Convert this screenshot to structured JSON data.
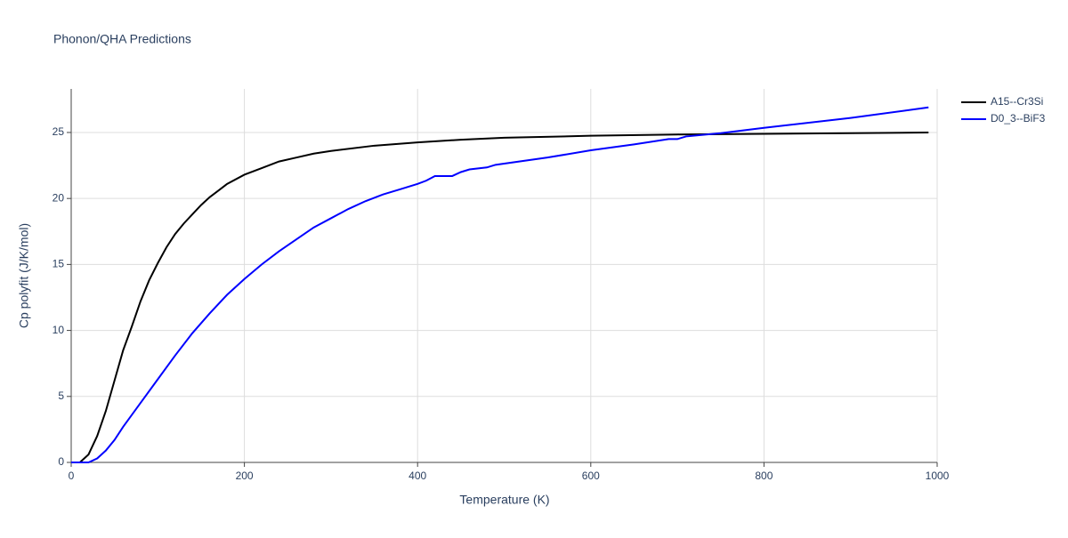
{
  "chart_data": {
    "type": "line",
    "title": "Phonon/QHA Predictions",
    "xlabel": "Temperature (K)",
    "ylabel": "Cp polyfit (J/K/mol)",
    "xlim": [
      0,
      1000
    ],
    "ylim": [
      0,
      28.3
    ],
    "xticks": [
      0,
      200,
      400,
      600,
      800,
      1000
    ],
    "yticks": [
      0,
      5,
      10,
      15,
      20,
      25
    ],
    "grid": true,
    "legend": "top-right",
    "series": [
      {
        "name": "A15--Cr3Si",
        "color": "#000000",
        "x": [
          0,
          10,
          20,
          30,
          40,
          50,
          60,
          70,
          80,
          90,
          100,
          110,
          120,
          130,
          140,
          150,
          160,
          170,
          180,
          200,
          220,
          240,
          260,
          280,
          300,
          350,
          400,
          450,
          500,
          600,
          700,
          800,
          900,
          990
        ],
        "values": [
          0,
          0,
          0.6,
          2,
          3.9,
          6.2,
          8.5,
          10.3,
          12.2,
          13.8,
          15.1,
          16.3,
          17.3,
          18.1,
          18.8,
          19.5,
          20.1,
          20.6,
          21.1,
          21.8,
          22.3,
          22.8,
          23.1,
          23.4,
          23.6,
          24.0,
          24.25,
          24.45,
          24.6,
          24.75,
          24.85,
          24.9,
          24.95,
          25.0
        ]
      },
      {
        "name": "D0_3--BiF3",
        "color": "#0000ff",
        "x": [
          0,
          20,
          30,
          40,
          50,
          60,
          70,
          80,
          100,
          120,
          140,
          160,
          180,
          200,
          220,
          240,
          260,
          280,
          300,
          320,
          340,
          360,
          380,
          400,
          410,
          420,
          440,
          450,
          460,
          480,
          490,
          550,
          600,
          650,
          690,
          700,
          710,
          750,
          800,
          900,
          990
        ],
        "values": [
          0,
          0,
          0.3,
          0.9,
          1.7,
          2.7,
          3.6,
          4.5,
          6.3,
          8.1,
          9.8,
          11.3,
          12.7,
          13.9,
          15,
          16.0,
          16.9,
          17.8,
          18.5,
          19.2,
          19.8,
          20.3,
          20.7,
          21.1,
          21.35,
          21.7,
          21.7,
          22.0,
          22.2,
          22.35,
          22.55,
          23.1,
          23.65,
          24.1,
          24.5,
          24.5,
          24.7,
          24.95,
          25.35,
          26.1,
          26.9
        ]
      }
    ]
  }
}
